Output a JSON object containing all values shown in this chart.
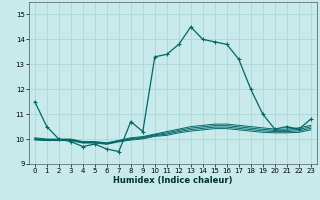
{
  "title": "",
  "xlabel": "Humidex (Indice chaleur)",
  "ylabel": "",
  "background_color": "#c8eaea",
  "grid_color": "#aad4d4",
  "line_color": "#006868",
  "xlim": [
    -0.5,
    23.5
  ],
  "ylim": [
    9,
    15.5
  ],
  "yticks": [
    9,
    10,
    11,
    12,
    13,
    14,
    15
  ],
  "xticks": [
    0,
    1,
    2,
    3,
    4,
    5,
    6,
    7,
    8,
    9,
    10,
    11,
    12,
    13,
    14,
    15,
    16,
    17,
    18,
    19,
    20,
    21,
    22,
    23
  ],
  "line1": [
    11.5,
    10.5,
    10.0,
    9.9,
    9.7,
    9.8,
    9.6,
    9.5,
    10.7,
    10.3,
    13.3,
    13.4,
    13.8,
    14.5,
    14.0,
    13.9,
    13.8,
    13.2,
    12.0,
    11.0,
    10.4,
    10.5,
    10.4,
    10.8
  ],
  "line2": [
    10.05,
    10.0,
    10.0,
    10.0,
    9.9,
    9.9,
    9.85,
    9.95,
    10.05,
    10.1,
    10.2,
    10.3,
    10.4,
    10.5,
    10.55,
    10.6,
    10.6,
    10.55,
    10.5,
    10.45,
    10.4,
    10.4,
    10.45,
    10.55
  ],
  "line3": [
    10.02,
    9.98,
    9.98,
    9.98,
    9.88,
    9.88,
    9.83,
    9.93,
    10.02,
    10.07,
    10.17,
    10.25,
    10.35,
    10.44,
    10.49,
    10.54,
    10.54,
    10.49,
    10.44,
    10.39,
    10.35,
    10.35,
    10.39,
    10.49
  ],
  "line4": [
    9.99,
    9.96,
    9.96,
    9.96,
    9.86,
    9.86,
    9.81,
    9.91,
    9.99,
    10.04,
    10.14,
    10.2,
    10.3,
    10.38,
    10.43,
    10.48,
    10.48,
    10.43,
    10.38,
    10.33,
    10.3,
    10.3,
    10.33,
    10.43
  ],
  "line5": [
    9.96,
    9.94,
    9.94,
    9.94,
    9.84,
    9.84,
    9.79,
    9.89,
    9.96,
    10.01,
    10.11,
    10.15,
    10.25,
    10.32,
    10.37,
    10.42,
    10.42,
    10.37,
    10.32,
    10.27,
    10.25,
    10.25,
    10.27,
    10.37
  ]
}
